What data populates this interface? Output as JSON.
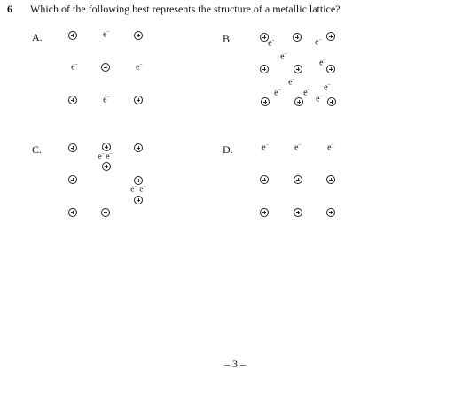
{
  "question": {
    "number": "6",
    "text": "Which of the following best represents the structure of a metallic lattice?"
  },
  "options": [
    {
      "label": "A."
    },
    {
      "label": "B."
    },
    {
      "label": "C."
    },
    {
      "label": "D."
    }
  ],
  "symbols": {
    "electron": "e",
    "electron_charge": "−",
    "cation": "plus-in-circle"
  },
  "footer": {
    "page_number": "– 3 –"
  }
}
